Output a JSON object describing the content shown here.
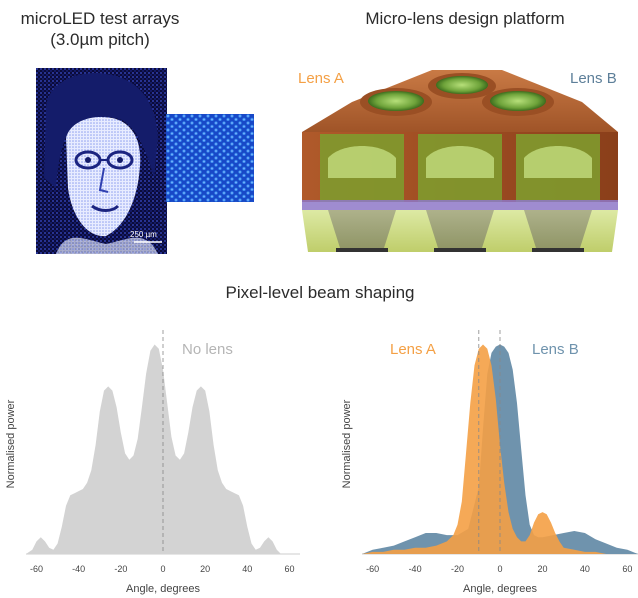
{
  "panels": {
    "microled": {
      "title_line1": "microLED test arrays",
      "title_line2": "(3.0µm pitch)",
      "scale_bar": "250 µm"
    },
    "microlens": {
      "title": "Micro-lens design platform",
      "label_a": "Lens A",
      "label_b": "Lens B"
    },
    "beam": {
      "title": "Pixel-level beam shaping"
    }
  },
  "colors": {
    "lens_a": "#f4a045",
    "lens_b": "#6f93ad",
    "no_lens": "#d3d3d3"
  },
  "chart_data": [
    {
      "type": "area",
      "annotation": "No lens",
      "xlabel": "Angle, degrees",
      "ylabel": "Normalised power",
      "xlim": [
        -65,
        65
      ],
      "xticks": [
        -60,
        -40,
        -20,
        0,
        20,
        40,
        60
      ],
      "ylim": [
        0,
        1.05
      ],
      "series": [
        {
          "name": "No lens",
          "x": [
            -65,
            -62,
            -60,
            -58,
            -56,
            -54,
            -52,
            -50,
            -48,
            -46,
            -44,
            -42,
            -40,
            -38,
            -36,
            -34,
            -32,
            -30,
            -28,
            -26,
            -24,
            -22,
            -20,
            -18,
            -16,
            -14,
            -12,
            -10,
            -8,
            -6,
            -4,
            -2,
            0,
            2,
            4,
            6,
            8,
            10,
            12,
            14,
            16,
            18,
            20,
            22,
            24,
            26,
            28,
            30,
            32,
            34,
            36,
            38,
            40,
            42,
            44,
            46,
            48,
            50,
            52,
            54,
            56,
            58,
            60,
            62,
            65
          ],
          "y": [
            0,
            0.02,
            0.06,
            0.08,
            0.06,
            0.03,
            0.02,
            0.05,
            0.13,
            0.23,
            0.28,
            0.29,
            0.3,
            0.31,
            0.34,
            0.4,
            0.52,
            0.68,
            0.78,
            0.8,
            0.78,
            0.7,
            0.58,
            0.48,
            0.45,
            0.47,
            0.55,
            0.7,
            0.86,
            0.97,
            1.0,
            0.98,
            0.88,
            0.72,
            0.56,
            0.47,
            0.45,
            0.48,
            0.58,
            0.7,
            0.78,
            0.8,
            0.78,
            0.68,
            0.52,
            0.4,
            0.34,
            0.31,
            0.3,
            0.29,
            0.28,
            0.23,
            0.13,
            0.05,
            0.02,
            0.03,
            0.06,
            0.08,
            0.06,
            0.02,
            0,
            0,
            0,
            0,
            0
          ]
        }
      ]
    },
    {
      "type": "area",
      "xlabel": "Angle, degrees",
      "ylabel": "Normalised power",
      "xlim": [
        -65,
        65
      ],
      "xticks": [
        -60,
        -40,
        -20,
        0,
        20,
        40,
        60
      ],
      "ylim": [
        0,
        1.05
      ],
      "series": [
        {
          "name": "Lens B",
          "x": [
            -65,
            -60,
            -55,
            -50,
            -45,
            -40,
            -35,
            -30,
            -25,
            -20,
            -15,
            -10,
            -8,
            -6,
            -4,
            -2,
            0,
            2,
            4,
            6,
            8,
            10,
            12,
            14,
            16,
            18,
            20,
            25,
            30,
            35,
            40,
            45,
            50,
            55,
            60,
            65
          ],
          "y": [
            0.0,
            0.02,
            0.03,
            0.04,
            0.06,
            0.08,
            0.1,
            0.1,
            0.09,
            0.09,
            0.12,
            0.32,
            0.6,
            0.86,
            0.96,
            0.99,
            1.0,
            0.99,
            0.96,
            0.88,
            0.72,
            0.5,
            0.28,
            0.14,
            0.09,
            0.08,
            0.08,
            0.09,
            0.1,
            0.11,
            0.1,
            0.07,
            0.05,
            0.03,
            0.02,
            0.0
          ]
        },
        {
          "name": "Lens A",
          "x": [
            -65,
            -60,
            -55,
            -50,
            -45,
            -40,
            -35,
            -30,
            -25,
            -22,
            -20,
            -18,
            -16,
            -14,
            -12,
            -10,
            -8,
            -6,
            -4,
            -2,
            0,
            2,
            4,
            6,
            8,
            10,
            12,
            14,
            16,
            18,
            20,
            22,
            24,
            26,
            28,
            30,
            35,
            40,
            45,
            50,
            55,
            60,
            65
          ],
          "y": [
            0.0,
            0.01,
            0.01,
            0.02,
            0.02,
            0.03,
            0.03,
            0.04,
            0.06,
            0.09,
            0.14,
            0.25,
            0.48,
            0.72,
            0.9,
            0.98,
            1.0,
            0.98,
            0.9,
            0.74,
            0.52,
            0.34,
            0.2,
            0.12,
            0.08,
            0.06,
            0.06,
            0.09,
            0.15,
            0.19,
            0.2,
            0.19,
            0.15,
            0.1,
            0.06,
            0.03,
            0.02,
            0.01,
            0.01,
            0.0,
            0.0,
            0.0,
            0.0
          ]
        }
      ],
      "annotations": [
        "Lens A",
        "Lens B"
      ],
      "vlines": [
        -10,
        0
      ]
    }
  ]
}
